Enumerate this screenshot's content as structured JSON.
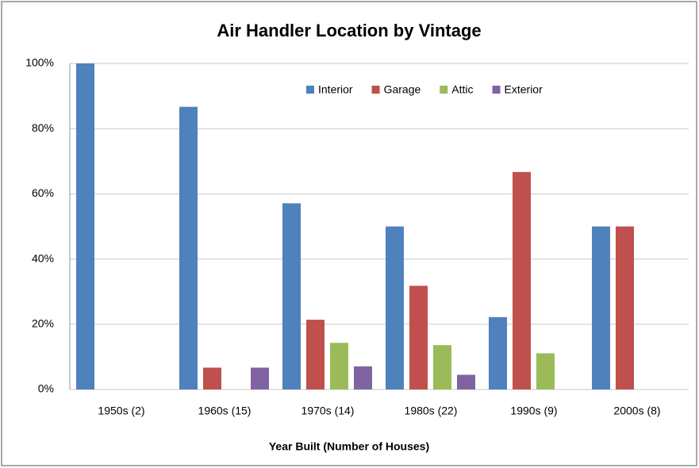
{
  "chart_data": {
    "type": "bar",
    "title": "Air Handler Location by Vintage",
    "x_label": "Year Built (Number of Houses)",
    "categories": [
      "1950s (2)",
      "1960s (15)",
      "1970s (14)",
      "1980s (22)",
      "1990s (9)",
      "2000s (8)"
    ],
    "series": [
      {
        "name": "Interior",
        "color": "#4f81bd",
        "values": [
          100,
          86.7,
          57.1,
          50,
          22.2,
          50
        ]
      },
      {
        "name": "Garage",
        "color": "#c0504d",
        "values": [
          0,
          6.7,
          21.4,
          31.8,
          66.7,
          50
        ]
      },
      {
        "name": "Attic",
        "color": "#9bbb59",
        "values": [
          0,
          0,
          14.3,
          13.6,
          11.1,
          0
        ]
      },
      {
        "name": "Exterior",
        "color": "#8064a2",
        "values": [
          0,
          6.7,
          7.1,
          4.5,
          0,
          0
        ]
      }
    ],
    "ylim": [
      0,
      100
    ],
    "yticks": [
      {
        "value": 0,
        "label": "0%"
      },
      {
        "value": 20,
        "label": "20%"
      },
      {
        "value": 40,
        "label": "40%"
      },
      {
        "value": 60,
        "label": "60%"
      },
      {
        "value": 80,
        "label": "80%"
      },
      {
        "value": 100,
        "label": "100%"
      }
    ],
    "grid": true,
    "legend": "top"
  }
}
